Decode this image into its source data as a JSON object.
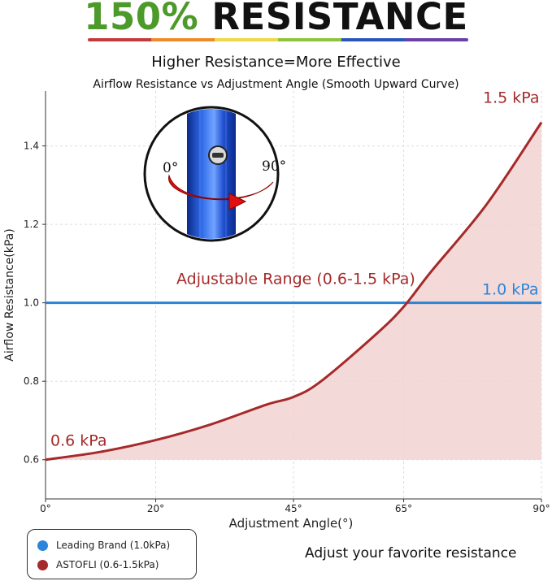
{
  "header": {
    "percent": "150%",
    "word": "RESISTANCE",
    "subtitle": "Higher Resistance=More Effective"
  },
  "colors": {
    "title_green": "#4c9a2a",
    "leading_brand": "#2b86d9",
    "astofli": "#a52a2a",
    "fill": "#f2d2d2",
    "rainbow": [
      "#c23a3a",
      "#ee8a2a",
      "#efd84a",
      "#8fc43a",
      "#2a57b7",
      "#6a3fa8"
    ]
  },
  "chart_data": {
    "type": "line",
    "title": "Airflow Resistance vs Adjustment Angle (Smooth Upward Curve)",
    "xlabel": "Adjustment Angle(°)",
    "ylabel": "Airflow Resistance(kPa)",
    "xlim": [
      0,
      90
    ],
    "ylim": [
      0.5,
      1.54
    ],
    "x_ticks": [
      0,
      20,
      45,
      65,
      90
    ],
    "x_tick_labels": [
      "0°",
      "20°",
      "45°",
      "65°",
      "90°"
    ],
    "y_ticks": [
      0.6,
      0.8,
      1.0,
      1.2,
      1.4
    ],
    "y_tick_labels": [
      "0.6",
      "0.8",
      "1.0",
      "1.2",
      "1.4"
    ],
    "grid": true,
    "series": [
      {
        "name": "Leading Brand (1.0kPa)",
        "color": "#2b86d9",
        "x": [
          0,
          90
        ],
        "y": [
          1.0,
          1.0
        ]
      },
      {
        "name": "ASTOFLI (0.6-1.5kPa)",
        "color": "#a52a2a",
        "fill": true,
        "x": [
          0,
          10,
          20,
          30,
          40,
          45,
          50,
          60,
          65,
          70,
          80,
          90
        ],
        "y": [
          0.6,
          0.62,
          0.65,
          0.69,
          0.74,
          0.76,
          0.8,
          0.92,
          0.99,
          1.08,
          1.25,
          1.46
        ]
      }
    ],
    "annotations": {
      "start": "0.6 kPa",
      "end": "1.5 kPa",
      "baseline": "1.0 kPa",
      "range": "Adjustable Range (0.6-1.5 kPa)"
    },
    "legend": "bottom-left"
  },
  "inset": {
    "label_left": "0°",
    "label_right": "90°"
  },
  "legend": [
    {
      "label": "Leading Brand (1.0kPa)",
      "color": "#2b86d9"
    },
    {
      "label": "ASTOFLI (0.6-1.5kPa)",
      "color": "#a52a2a"
    }
  ],
  "tagline": "Adjust your favorite resistance"
}
